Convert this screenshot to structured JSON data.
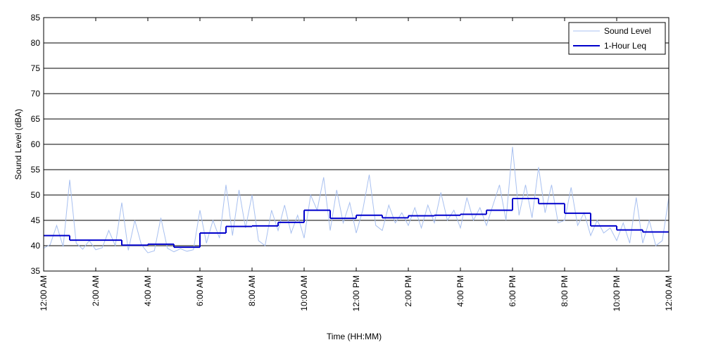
{
  "chart_data": {
    "type": "line",
    "xlabel": "Time (HH:MM)",
    "ylabel": "Sound Level (dBA)",
    "xlim": [
      0,
      24
    ],
    "xticks": [
      {
        "value": 0,
        "label": "12:00 AM"
      },
      {
        "value": 2,
        "label": "2:00 AM"
      },
      {
        "value": 4,
        "label": "4:00 AM"
      },
      {
        "value": 6,
        "label": "6:00 AM"
      },
      {
        "value": 8,
        "label": "8:00 AM"
      },
      {
        "value": 10,
        "label": "10:00 AM"
      },
      {
        "value": 12,
        "label": "12:00 PM"
      },
      {
        "value": 14,
        "label": "2:00 PM"
      },
      {
        "value": 16,
        "label": "4:00 PM"
      },
      {
        "value": 18,
        "label": "6:00 PM"
      },
      {
        "value": 20,
        "label": "8:00 PM"
      },
      {
        "value": 22,
        "label": "10:00 PM"
      },
      {
        "value": 24,
        "label": "12:00 AM"
      }
    ],
    "ylim": [
      35,
      85
    ],
    "yticks": [
      35,
      40,
      45,
      50,
      55,
      60,
      65,
      70,
      75,
      80,
      85
    ],
    "grid": true,
    "legend": "northeast",
    "series": [
      {
        "name": "Sound Level",
        "color": "#a8c0f0",
        "style": "line",
        "x": [
          0,
          0.25,
          0.5,
          0.75,
          1,
          1.25,
          1.5,
          1.75,
          2,
          2.25,
          2.5,
          2.75,
          3,
          3.25,
          3.5,
          3.75,
          4,
          4.25,
          4.5,
          4.75,
          5,
          5.25,
          5.5,
          5.75,
          6,
          6.25,
          6.5,
          6.75,
          7,
          7.25,
          7.5,
          7.75,
          8,
          8.25,
          8.5,
          8.75,
          9,
          9.25,
          9.5,
          9.75,
          10,
          10.25,
          10.5,
          10.75,
          11,
          11.25,
          11.5,
          11.75,
          12,
          12.25,
          12.5,
          12.75,
          13,
          13.25,
          13.5,
          13.75,
          14,
          14.25,
          14.5,
          14.75,
          15,
          15.25,
          15.5,
          15.75,
          16,
          16.25,
          16.5,
          16.75,
          17,
          17.25,
          17.5,
          17.75,
          18,
          18.25,
          18.5,
          18.75,
          19,
          19.25,
          19.5,
          19.75,
          20,
          20.25,
          20.5,
          20.75,
          21,
          21.25,
          21.5,
          21.75,
          22,
          22.25,
          22.5,
          22.75,
          23,
          23.25,
          23.5,
          23.75,
          24
        ],
        "values": [
          39.5,
          40.2,
          44,
          39.8,
          53,
          40.5,
          39.3,
          41,
          39.2,
          39.6,
          43,
          40,
          48.5,
          39.1,
          45,
          40.2,
          38.6,
          39,
          45.5,
          39.5,
          38.8,
          39.4,
          38.9,
          39.2,
          47,
          40.5,
          45,
          41.5,
          52,
          42,
          51,
          43.5,
          50,
          41,
          40,
          47,
          43,
          48,
          42.5,
          46,
          41.5,
          50,
          47,
          53.5,
          43,
          51,
          44.5,
          48.5,
          42.5,
          47,
          54,
          44,
          43,
          48,
          44.5,
          46.5,
          44,
          47.5,
          43.5,
          48,
          44.5,
          50.5,
          45,
          47,
          43.5,
          49.5,
          45,
          47.5,
          44,
          48,
          52,
          45,
          59.5,
          46,
          52,
          45.5,
          55.5,
          46.5,
          52,
          44.5,
          45,
          51.5,
          44,
          46.5,
          42,
          45,
          42.5,
          43.5,
          41,
          44.5,
          40.5,
          49.5,
          40.5,
          45,
          40,
          41,
          49.5
        ]
      },
      {
        "name": "1-Hour Leq",
        "color": "#0000cc",
        "style": "step",
        "x": [
          0,
          1,
          2,
          3,
          4,
          5,
          6,
          7,
          8,
          9,
          10,
          11,
          12,
          13,
          14,
          15,
          16,
          17,
          18,
          19,
          20,
          21,
          22,
          23
        ],
        "values": [
          42.0,
          41.1,
          41.1,
          40.1,
          40.3,
          39.7,
          42.5,
          43.8,
          43.9,
          44.6,
          47.0,
          45.4,
          46.0,
          45.5,
          45.9,
          46.0,
          46.2,
          47.0,
          49.3,
          48.3,
          46.4,
          43.9,
          43.1,
          42.7
        ]
      }
    ]
  }
}
